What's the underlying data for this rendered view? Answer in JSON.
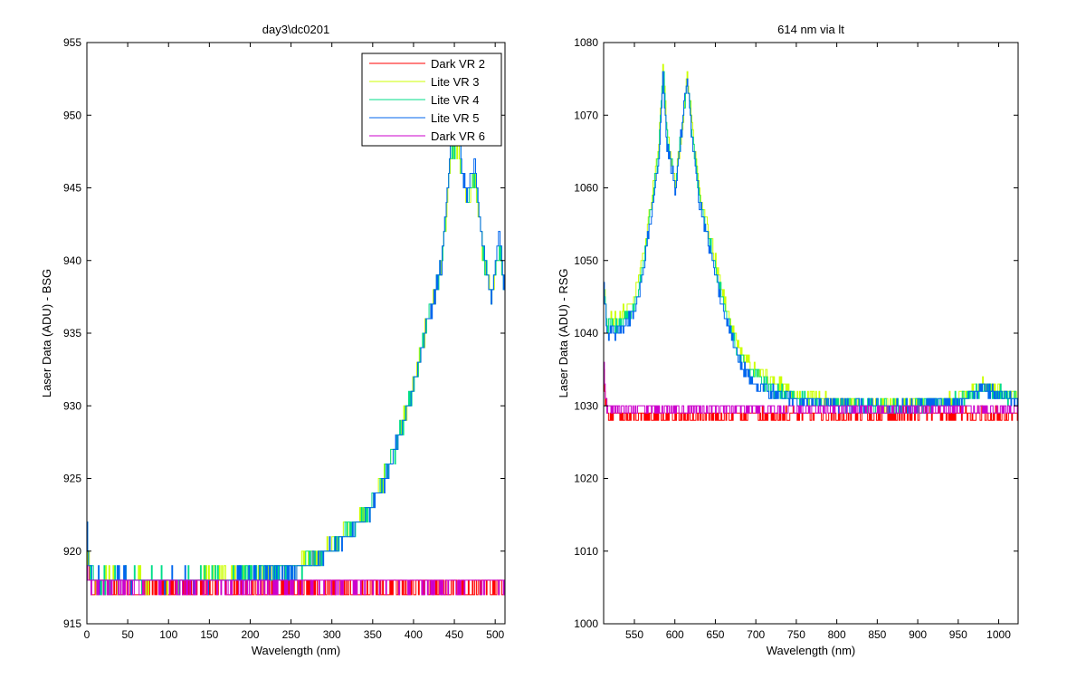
{
  "chart_data": [
    {
      "type": "line",
      "title": "day3\\dc0201",
      "xlabel": "Wavelength (nm)",
      "ylabel": "Laser Data (ADU) - BSG",
      "xlim": [
        0,
        512
      ],
      "ylim": [
        915,
        955
      ],
      "xticks": [
        0,
        50,
        100,
        150,
        200,
        250,
        300,
        350,
        400,
        450,
        500
      ],
      "yticks": [
        915,
        920,
        925,
        930,
        935,
        940,
        945,
        950,
        955
      ],
      "grid": false,
      "legend_position": "top-right",
      "series": [
        {
          "name": "Dark VR 2",
          "color": "#ff0000",
          "x": [
            0,
            1,
            2,
            3,
            4,
            6,
            10,
            50,
            100,
            150,
            200,
            250,
            300,
            350,
            400,
            450,
            500,
            512
          ],
          "y": [
            922,
            920,
            919,
            918,
            917.5,
            917.5,
            917.5,
            917.3,
            917.5,
            917.4,
            917.3,
            917.4,
            917.5,
            917.4,
            917.5,
            917.5,
            917.5,
            917.5
          ]
        },
        {
          "name": "Lite VR 3",
          "color": "#ccff00",
          "x": [
            0,
            1,
            2,
            4,
            10,
            50,
            100,
            150,
            200,
            250,
            280,
            300,
            320,
            340,
            360,
            380,
            400,
            420,
            435,
            445,
            455,
            465,
            475,
            485,
            495,
            505,
            512
          ],
          "y": [
            922,
            920,
            919,
            918.5,
            918,
            918,
            918,
            918.2,
            918.4,
            918.8,
            919.5,
            920.3,
            921.5,
            922.5,
            924.5,
            927.5,
            931.5,
            936.5,
            940,
            947,
            947.5,
            944,
            945.5,
            940.5,
            937.5,
            940.5,
            937.5
          ]
        },
        {
          "name": "Lite VR 4",
          "color": "#00dd88",
          "x": [
            0,
            1,
            2,
            4,
            10,
            50,
            100,
            150,
            200,
            250,
            280,
            300,
            320,
            340,
            360,
            380,
            400,
            420,
            435,
            445,
            455,
            465,
            475,
            485,
            495,
            505,
            512
          ],
          "y": [
            922,
            920,
            919,
            918.5,
            918,
            918,
            918,
            918.1,
            918.3,
            918.7,
            919.4,
            920.2,
            921.4,
            922.4,
            924.4,
            927.4,
            931.4,
            936.4,
            940,
            947.5,
            948,
            944,
            946,
            940.5,
            937.5,
            941,
            937.5
          ]
        },
        {
          "name": "Lite VR 5",
          "color": "#0066ee",
          "x": [
            0,
            1,
            2,
            4,
            10,
            50,
            100,
            150,
            200,
            250,
            280,
            300,
            320,
            340,
            360,
            380,
            400,
            420,
            435,
            445,
            455,
            465,
            475,
            485,
            495,
            505,
            512
          ],
          "y": [
            922,
            920,
            919,
            918.5,
            918,
            918,
            918,
            918,
            918.2,
            918.6,
            919.3,
            920.1,
            921.3,
            922.3,
            924.3,
            927.3,
            931.3,
            936.3,
            940,
            948,
            948.5,
            944,
            947,
            940.5,
            937.5,
            942,
            937.5
          ]
        },
        {
          "name": "Dark VR 6",
          "color": "#cc00cc",
          "x": [
            0,
            2,
            4,
            10,
            50,
            100,
            150,
            200,
            250,
            300,
            350,
            400,
            450,
            500,
            512
          ],
          "y": [
            919,
            918,
            917.7,
            917.7,
            917.7,
            917.8,
            917.7,
            917.6,
            917.7,
            917.8,
            917.8,
            917.9,
            917.8,
            918.0,
            917.8
          ]
        }
      ]
    },
    {
      "type": "line",
      "title": "614 nm via lt",
      "xlabel": "Wavelength (nm)",
      "ylabel": "Laser Data (ADU) - RSG",
      "xlim": [
        512,
        1024
      ],
      "ylim": [
        1000,
        1080
      ],
      "xticks": [
        550,
        600,
        650,
        700,
        750,
        800,
        850,
        900,
        950,
        1000
      ],
      "yticks": [
        1000,
        1010,
        1020,
        1030,
        1040,
        1050,
        1060,
        1070,
        1080
      ],
      "grid": false,
      "series": [
        {
          "name": "Dark VR 2",
          "color": "#ff0000",
          "x": [
            512,
            514,
            516,
            520,
            550,
            600,
            650,
            700,
            750,
            800,
            850,
            900,
            950,
            1000,
            1024
          ],
          "y": [
            1035,
            1031,
            1029,
            1028.5,
            1028.5,
            1028.5,
            1028.6,
            1028.6,
            1028.7,
            1028.6,
            1028.7,
            1028.7,
            1028.7,
            1028.7,
            1028.6
          ]
        },
        {
          "name": "Lite VR 3",
          "color": "#ccff00",
          "x": [
            512,
            516,
            530,
            550,
            560,
            570,
            580,
            585,
            590,
            600,
            610,
            615,
            620,
            625,
            630,
            640,
            650,
            660,
            670,
            680,
            690,
            700,
            725,
            750,
            800,
            850,
            900,
            950,
            980,
            1000,
            1024
          ],
          "y": [
            1046,
            1042,
            1042,
            1045,
            1050,
            1058,
            1066,
            1077,
            1068,
            1060,
            1070,
            1075,
            1070,
            1065,
            1060,
            1055,
            1050,
            1045,
            1041,
            1038,
            1036,
            1035,
            1033,
            1031.5,
            1030.5,
            1030,
            1030,
            1031,
            1033,
            1032,
            1031
          ]
        },
        {
          "name": "Lite VR 4",
          "color": "#00dd88",
          "x": [
            512,
            516,
            530,
            550,
            560,
            570,
            580,
            585,
            590,
            600,
            610,
            615,
            620,
            625,
            630,
            640,
            650,
            660,
            670,
            680,
            690,
            700,
            725,
            750,
            800,
            850,
            900,
            950,
            980,
            1000,
            1024
          ],
          "y": [
            1046,
            1041,
            1041,
            1044,
            1049,
            1057,
            1065,
            1077,
            1067,
            1060,
            1070,
            1075,
            1069,
            1064,
            1059,
            1054,
            1049,
            1044,
            1040,
            1037,
            1035,
            1034,
            1032,
            1031,
            1030.3,
            1030,
            1030,
            1030.8,
            1032.5,
            1031.8,
            1030.8
          ]
        },
        {
          "name": "Lite VR 5",
          "color": "#0066ee",
          "x": [
            512,
            516,
            530,
            550,
            560,
            570,
            580,
            585,
            590,
            600,
            610,
            615,
            620,
            625,
            630,
            640,
            650,
            660,
            670,
            680,
            690,
            700,
            725,
            750,
            800,
            850,
            900,
            950,
            980,
            1000,
            1024
          ],
          "y": [
            1046,
            1040,
            1040,
            1043,
            1048,
            1056,
            1064,
            1076,
            1066,
            1060,
            1070,
            1075,
            1068,
            1063,
            1058,
            1053,
            1048,
            1043,
            1039,
            1036,
            1034,
            1033,
            1031.5,
            1030.8,
            1030.2,
            1029.9,
            1030,
            1030.6,
            1032.3,
            1031.6,
            1030.6
          ]
        },
        {
          "name": "Dark VR 6",
          "color": "#cc00cc",
          "x": [
            512,
            514,
            516,
            520,
            550,
            600,
            650,
            700,
            750,
            800,
            850,
            900,
            950,
            1000,
            1024
          ],
          "y": [
            1035,
            1032,
            1030,
            1029.5,
            1029.5,
            1029.5,
            1029.6,
            1029.5,
            1029.4,
            1029.5,
            1029.4,
            1029.6,
            1029.5,
            1029.5,
            1029.6
          ]
        }
      ]
    }
  ]
}
